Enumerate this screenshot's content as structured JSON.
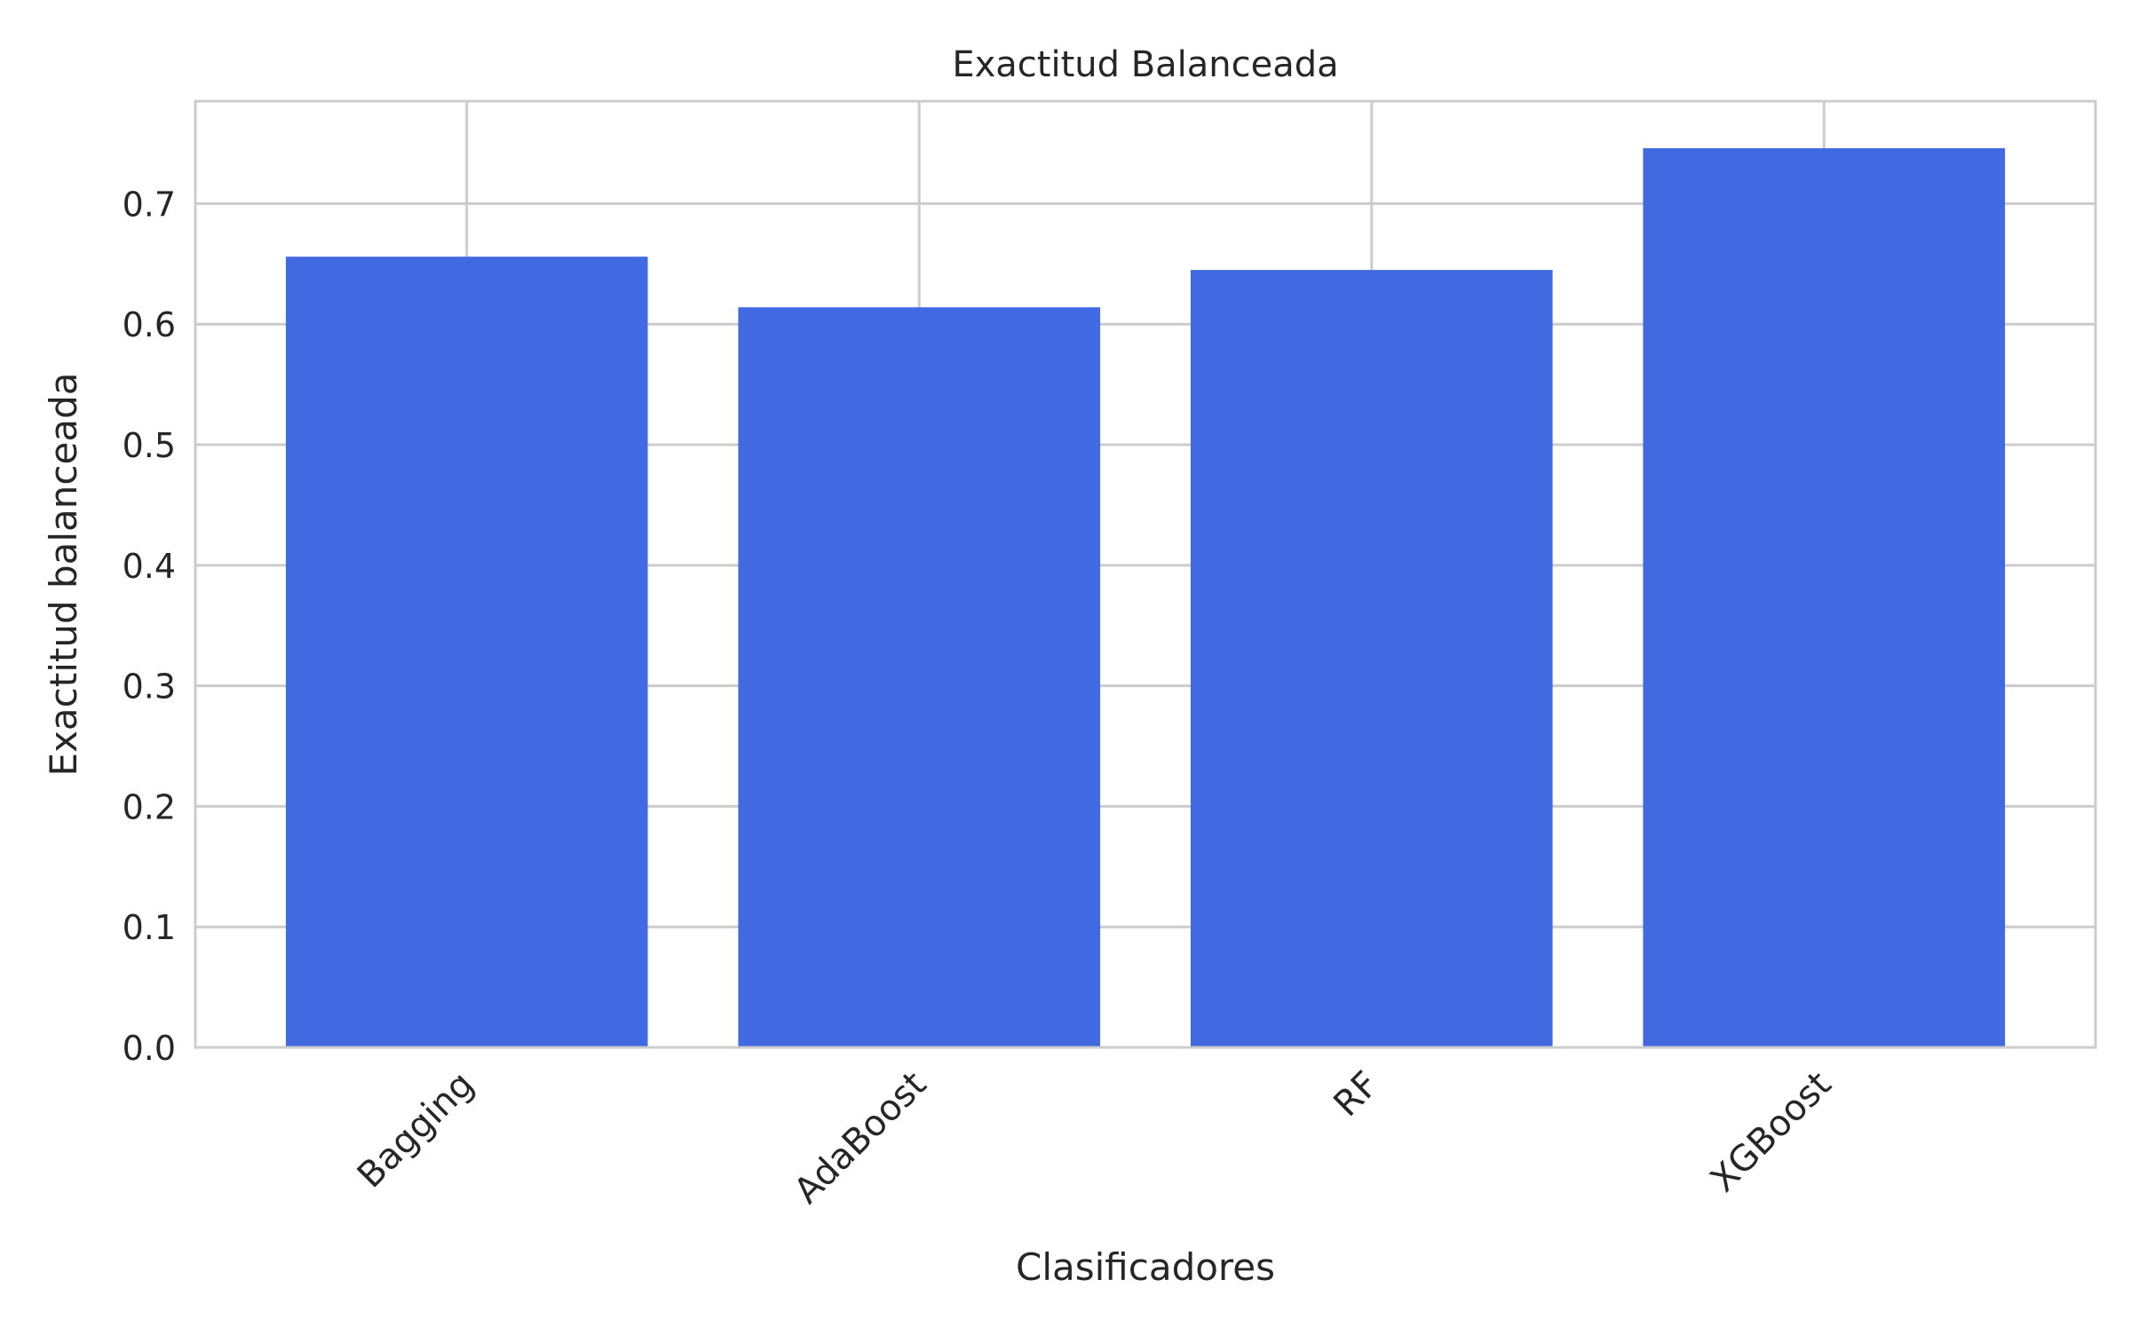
{
  "chart_data": {
    "type": "bar",
    "title": "Exactitud Balanceada",
    "xlabel": "Clasificadores",
    "ylabel": "Exactitud balanceada",
    "categories": [
      "Bagging",
      "AdaBoost",
      "RF",
      "XGBoost"
    ],
    "values": [
      0.656,
      0.614,
      0.645,
      0.746
    ],
    "ylim": [
      0,
      0.785
    ],
    "yticks": [
      0.0,
      0.1,
      0.2,
      0.3,
      0.4,
      0.5,
      0.6,
      0.7
    ],
    "ytick_labels": [
      "0.0",
      "0.1",
      "0.2",
      "0.3",
      "0.4",
      "0.5",
      "0.6",
      "0.7"
    ],
    "grid": true,
    "bar_color": "#4169e1",
    "grid_color": "#cccccc",
    "xtick_rotation": 45
  }
}
